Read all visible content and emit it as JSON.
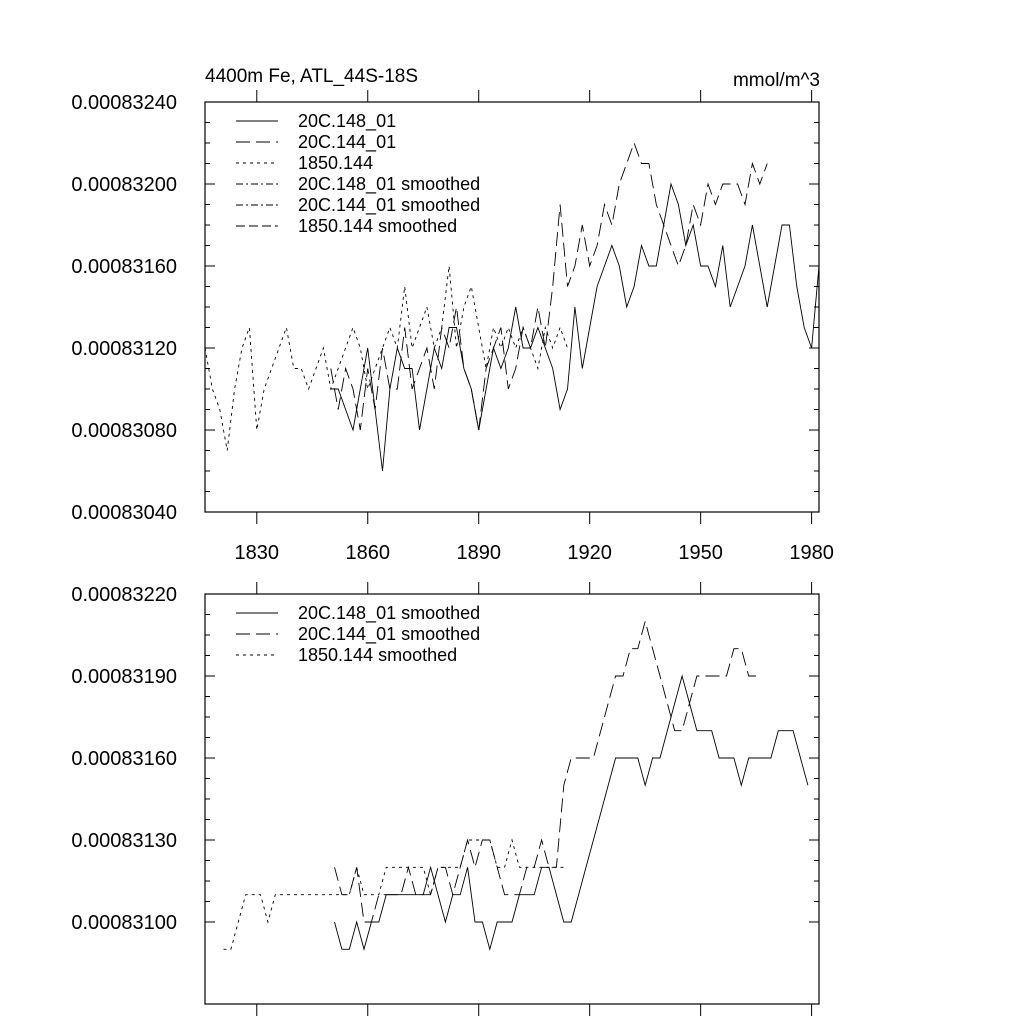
{
  "chart_data": [
    {
      "type": "line",
      "title": "4400m Fe, ATL_44S-18S",
      "units": "mmol/m^3",
      "x_range": [
        1816,
        1982
      ],
      "ylim": [
        0.0008304,
        0.0008324
      ],
      "y_ticks": [
        "0.00083040",
        "0.00083080",
        "0.00083120",
        "0.00083160",
        "0.00083200",
        "0.00083240"
      ],
      "y_tick_values": [
        0.0008304,
        0.0008308,
        0.0008312,
        0.0008316,
        0.000832,
        0.0008324
      ],
      "x_ticks": [
        "1830",
        "1860",
        "1890",
        "1920",
        "1950",
        "1980"
      ],
      "x_tick_values": [
        1830,
        1860,
        1890,
        1920,
        1950,
        1980
      ],
      "legend": [
        "20C.148_01",
        "20C.144_01",
        "1850.144",
        "20C.148_01 smoothed",
        "20C.144_01 smoothed",
        "1850.144 smoothed"
      ],
      "series": [
        {
          "name": "20C.148_01",
          "dash": "solid",
          "x": [
            1850,
            1852,
            1854,
            1856,
            1858,
            1860,
            1862,
            1864,
            1866,
            1868,
            1870,
            1872,
            1874,
            1876,
            1878,
            1880,
            1882,
            1884,
            1886,
            1888,
            1890,
            1892,
            1894,
            1896,
            1898,
            1900,
            1902,
            1904,
            1906,
            1908,
            1910,
            1912,
            1914,
            1916,
            1918,
            1920,
            1922,
            1924,
            1926,
            1928,
            1930,
            1932,
            1934,
            1936,
            1938,
            1940,
            1942,
            1944,
            1946,
            1948,
            1950,
            1952,
            1954,
            1956,
            1958,
            1960,
            1962,
            1964,
            1966,
            1968,
            1970,
            1972,
            1974,
            1976,
            1978,
            1980,
            1982
          ],
          "values": [
            0.000831,
            0.000831,
            0.0008309,
            0.0008308,
            0.000831,
            0.0008312,
            0.0008309,
            0.0008306,
            0.000831,
            0.0008312,
            0.0008311,
            0.0008311,
            0.0008308,
            0.000831,
            0.0008312,
            0.0008311,
            0.0008313,
            0.0008313,
            0.0008311,
            0.000831,
            0.0008308,
            0.000831,
            0.0008312,
            0.0008311,
            0.0008312,
            0.0008314,
            0.0008312,
            0.0008312,
            0.0008313,
            0.0008312,
            0.0008311,
            0.0008309,
            0.000831,
            0.0008314,
            0.0008311,
            0.0008313,
            0.0008315,
            0.0008316,
            0.0008317,
            0.0008316,
            0.0008314,
            0.0008315,
            0.0008317,
            0.0008316,
            0.0008316,
            0.0008318,
            0.000832,
            0.0008319,
            0.0008317,
            0.0008318,
            0.0008316,
            0.0008316,
            0.0008315,
            0.0008317,
            0.0008314,
            0.0008315,
            0.0008316,
            0.0008318,
            0.0008316,
            0.0008314,
            0.0008316,
            0.0008318,
            0.0008318,
            0.0008315,
            0.0008313,
            0.0008312,
            0.0008316
          ]
        },
        {
          "name": "20C.144_01",
          "dash": "long",
          "x": [
            1850,
            1852,
            1854,
            1856,
            1858,
            1860,
            1862,
            1864,
            1866,
            1868,
            1870,
            1872,
            1874,
            1876,
            1878,
            1880,
            1882,
            1884,
            1886,
            1888,
            1890,
            1892,
            1894,
            1896,
            1898,
            1900,
            1902,
            1904,
            1906,
            1908,
            1910,
            1912,
            1914,
            1916,
            1918,
            1920,
            1922,
            1924,
            1926,
            1928,
            1930,
            1932,
            1934,
            1936,
            1938,
            1940,
            1942,
            1944,
            1946,
            1948,
            1950,
            1952,
            1954,
            1956,
            1958,
            1960,
            1962,
            1964,
            1966,
            1968
          ],
          "values": [
            0.0008311,
            0.0008309,
            0.0008311,
            0.000831,
            0.0008308,
            0.0008311,
            0.0008309,
            0.0008312,
            0.000831,
            0.000831,
            0.0008313,
            0.000831,
            0.0008311,
            0.0008312,
            0.000831,
            0.0008313,
            0.0008312,
            0.0008314,
            0.0008311,
            0.000831,
            0.0008308,
            0.0008311,
            0.0008312,
            0.0008313,
            0.000831,
            0.0008311,
            0.0008313,
            0.0008312,
            0.0008314,
            0.0008312,
            0.0008315,
            0.0008319,
            0.0008315,
            0.0008316,
            0.0008318,
            0.0008316,
            0.0008317,
            0.0008319,
            0.0008318,
            0.000832,
            0.0008321,
            0.0008322,
            0.0008321,
            0.0008321,
            0.0008319,
            0.0008318,
            0.0008317,
            0.0008316,
            0.0008317,
            0.0008319,
            0.0008318,
            0.000832,
            0.0008319,
            0.000832,
            0.000832,
            0.000832,
            0.0008319,
            0.0008321,
            0.000832,
            0.0008321
          ]
        },
        {
          "name": "1850.144",
          "dash": "short",
          "x": [
            1816,
            1818,
            1820,
            1822,
            1824,
            1826,
            1828,
            1830,
            1832,
            1834,
            1836,
            1838,
            1840,
            1842,
            1844,
            1846,
            1848,
            1850,
            1852,
            1854,
            1856,
            1858,
            1860,
            1862,
            1864,
            1866,
            1868,
            1870,
            1872,
            1874,
            1876,
            1878,
            1880,
            1882,
            1884,
            1886,
            1888,
            1890,
            1892,
            1894,
            1896,
            1898,
            1900,
            1902,
            1904,
            1906,
            1908,
            1910,
            1912,
            1914
          ],
          "values": [
            0.0008312,
            0.000831,
            0.0008309,
            0.0008307,
            0.000831,
            0.0008312,
            0.0008313,
            0.0008308,
            0.000831,
            0.0008311,
            0.0008312,
            0.0008313,
            0.0008311,
            0.0008311,
            0.000831,
            0.0008311,
            0.0008312,
            0.000831,
            0.0008311,
            0.0008312,
            0.0008313,
            0.0008312,
            0.000831,
            0.0008311,
            0.0008312,
            0.0008313,
            0.0008312,
            0.0008315,
            0.0008312,
            0.0008313,
            0.0008314,
            0.0008312,
            0.0008313,
            0.0008316,
            0.0008312,
            0.0008314,
            0.0008315,
            0.0008313,
            0.0008311,
            0.0008313,
            0.0008312,
            0.0008313,
            0.0008312,
            0.0008313,
            0.0008312,
            0.0008311,
            0.0008313,
            0.0008312,
            0.0008313,
            0.0008312
          ]
        }
      ]
    },
    {
      "type": "line",
      "ylim": [
        0.0008307,
        0.0008322
      ],
      "y_ticks": [
        "0.00083100",
        "0.00083130",
        "0.00083160",
        "0.00083190",
        "0.00083220"
      ],
      "y_tick_values": [
        0.000831,
        0.0008313,
        0.0008316,
        0.0008319,
        0.0008322
      ],
      "x_range": [
        1816,
        1982
      ],
      "x_tick_values": [
        1830,
        1860,
        1890,
        1920,
        1950,
        1980
      ],
      "legend": [
        "20C.148_01 smoothed",
        "20C.144_01 smoothed",
        "1850.144 smoothed"
      ],
      "series": [
        {
          "name": "20C.148_01 smoothed",
          "dash": "solid",
          "x": [
            1851,
            1853,
            1855,
            1857,
            1859,
            1861,
            1863,
            1865,
            1867,
            1869,
            1871,
            1873,
            1875,
            1877,
            1879,
            1881,
            1883,
            1885,
            1887,
            1889,
            1891,
            1893,
            1895,
            1897,
            1899,
            1901,
            1903,
            1905,
            1907,
            1909,
            1911,
            1913,
            1915,
            1917,
            1919,
            1921,
            1923,
            1925,
            1927,
            1929,
            1931,
            1933,
            1935,
            1937,
            1939,
            1941,
            1943,
            1945,
            1947,
            1949,
            1951,
            1953,
            1955,
            1957,
            1959,
            1961,
            1963,
            1965,
            1967,
            1969,
            1971,
            1973,
            1975,
            1977,
            1979
          ],
          "values": [
            0.000831,
            0.0008309,
            0.0008309,
            0.000831,
            0.0008309,
            0.000831,
            0.000831,
            0.0008311,
            0.0008311,
            0.0008311,
            0.0008311,
            0.0008311,
            0.0008311,
            0.0008312,
            0.0008311,
            0.000831,
            0.0008311,
            0.0008311,
            0.0008312,
            0.000831,
            0.000831,
            0.0008309,
            0.000831,
            0.000831,
            0.000831,
            0.0008311,
            0.0008311,
            0.0008311,
            0.0008312,
            0.0008312,
            0.0008311,
            0.000831,
            0.000831,
            0.0008311,
            0.0008312,
            0.0008313,
            0.0008314,
            0.0008315,
            0.0008316,
            0.0008316,
            0.0008316,
            0.0008316,
            0.0008315,
            0.0008316,
            0.0008316,
            0.0008317,
            0.0008318,
            0.0008319,
            0.0008318,
            0.0008317,
            0.0008317,
            0.0008317,
            0.0008316,
            0.0008316,
            0.0008316,
            0.0008315,
            0.0008316,
            0.0008316,
            0.0008316,
            0.0008316,
            0.0008317,
            0.0008317,
            0.0008317,
            0.0008316,
            0.0008315
          ]
        },
        {
          "name": "20C.144_01 smoothed",
          "dash": "long",
          "x": [
            1851,
            1853,
            1855,
            1857,
            1859,
            1861,
            1863,
            1865,
            1867,
            1869,
            1871,
            1873,
            1875,
            1877,
            1879,
            1881,
            1883,
            1885,
            1887,
            1889,
            1891,
            1893,
            1895,
            1897,
            1899,
            1901,
            1903,
            1905,
            1907,
            1909,
            1911,
            1913,
            1915,
            1917,
            1919,
            1921,
            1923,
            1925,
            1927,
            1929,
            1931,
            1933,
            1935,
            1937,
            1939,
            1941,
            1943,
            1945,
            1947,
            1949,
            1951,
            1953,
            1955,
            1957,
            1959,
            1961,
            1963,
            1965
          ],
          "values": [
            0.0008312,
            0.0008311,
            0.0008311,
            0.0008312,
            0.000831,
            0.000831,
            0.0008311,
            0.0008311,
            0.0008311,
            0.0008311,
            0.0008312,
            0.0008311,
            0.0008311,
            0.0008311,
            0.0008312,
            0.0008312,
            0.0008311,
            0.0008312,
            0.0008313,
            0.0008312,
            0.0008313,
            0.0008313,
            0.0008312,
            0.0008311,
            0.0008311,
            0.0008311,
            0.0008312,
            0.0008312,
            0.0008313,
            0.0008312,
            0.0008312,
            0.0008315,
            0.0008316,
            0.0008316,
            0.0008316,
            0.0008316,
            0.0008317,
            0.0008318,
            0.0008319,
            0.0008319,
            0.000832,
            0.000832,
            0.0008321,
            0.000832,
            0.0008319,
            0.0008318,
            0.0008317,
            0.0008317,
            0.0008318,
            0.0008319,
            0.0008319,
            0.0008319,
            0.0008319,
            0.0008319,
            0.000832,
            0.000832,
            0.0008319,
            0.0008319
          ]
        },
        {
          "name": "1850.144 smoothed",
          "dash": "short",
          "x": [
            1821,
            1823,
            1825,
            1827,
            1829,
            1831,
            1833,
            1835,
            1837,
            1839,
            1841,
            1843,
            1845,
            1847,
            1849,
            1851,
            1853,
            1855,
            1857,
            1859,
            1861,
            1863,
            1865,
            1867,
            1869,
            1871,
            1873,
            1875,
            1877,
            1879,
            1881,
            1883,
            1885,
            1887,
            1889,
            1891,
            1893,
            1895,
            1897,
            1899,
            1901,
            1903,
            1905,
            1907,
            1909,
            1911,
            1913
          ],
          "values": [
            0.0008309,
            0.0008309,
            0.000831,
            0.0008311,
            0.0008311,
            0.0008311,
            0.000831,
            0.0008311,
            0.0008311,
            0.0008311,
            0.0008311,
            0.0008311,
            0.0008311,
            0.0008311,
            0.0008311,
            0.0008311,
            0.0008311,
            0.0008311,
            0.0008312,
            0.0008311,
            0.0008311,
            0.0008311,
            0.0008312,
            0.0008312,
            0.0008312,
            0.0008312,
            0.0008312,
            0.0008312,
            0.0008311,
            0.0008312,
            0.0008312,
            0.0008312,
            0.0008312,
            0.0008313,
            0.0008313,
            0.0008313,
            0.0008313,
            0.0008312,
            0.0008312,
            0.0008313,
            0.0008312,
            0.0008312,
            0.0008312,
            0.0008312,
            0.0008312,
            0.0008312,
            0.0008312
          ]
        }
      ]
    }
  ]
}
